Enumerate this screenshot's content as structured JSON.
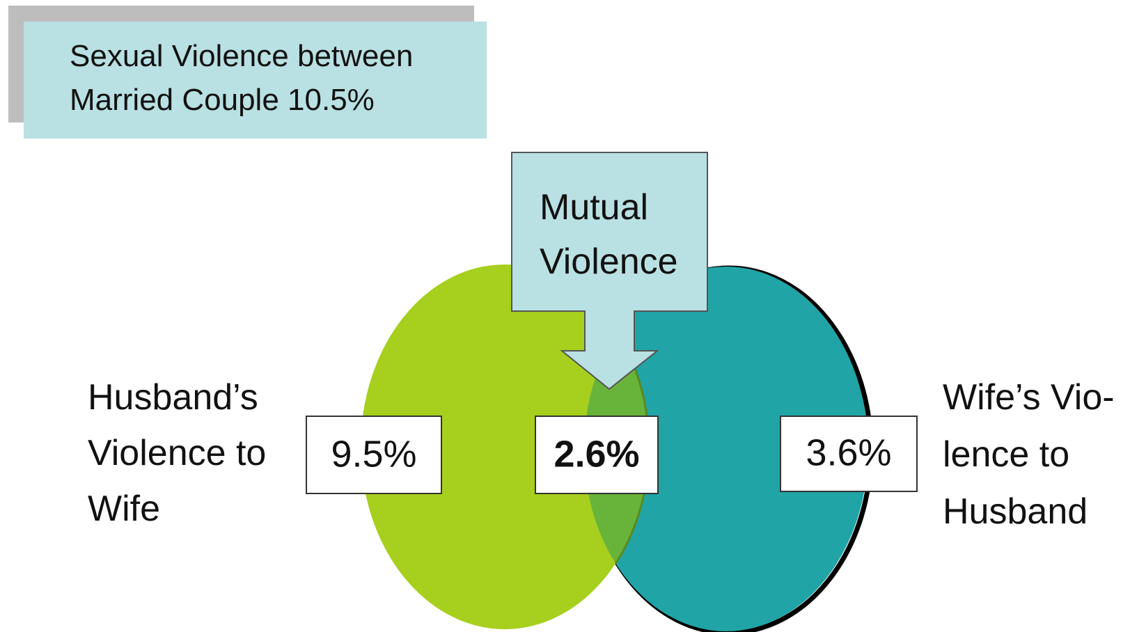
{
  "title": {
    "lines": [
      "Sexual Violence between",
      "Married Couple 10.5%"
    ]
  },
  "callout": {
    "lines": [
      "Mutual",
      "Violence"
    ]
  },
  "left": {
    "lines": [
      "Husband’s",
      "Violence to",
      "Wife"
    ],
    "value": "9.5%"
  },
  "overlap": {
    "value": "2.6%"
  },
  "right": {
    "lines": [
      "Wife’s Vio-",
      "lence to",
      "Husband"
    ],
    "value": "3.6%"
  }
}
